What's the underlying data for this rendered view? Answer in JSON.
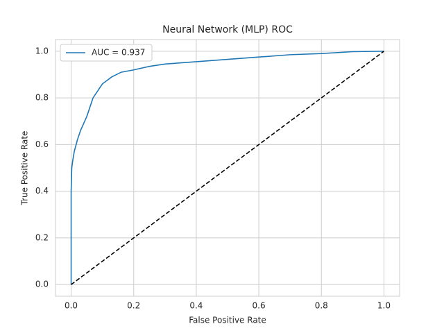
{
  "chart_data": {
    "type": "line",
    "title": "Neural Network (MLP) ROC",
    "x_label": "False Positive Rate",
    "y_label": "True Positive Rate",
    "series": [
      {
        "name": "AUC = 0.937",
        "color": "#1f77b4",
        "dash": false,
        "x": [
          0,
          0,
          0.002,
          0.005,
          0.01,
          0.02,
          0.03,
          0.05,
          0.07,
          0.1,
          0.13,
          0.16,
          0.2,
          0.25,
          0.3,
          0.4,
          0.5,
          0.6,
          0.7,
          0.8,
          0.9,
          1.0
        ],
        "values": [
          0,
          0.4,
          0.5,
          0.53,
          0.57,
          0.62,
          0.66,
          0.72,
          0.8,
          0.86,
          0.89,
          0.91,
          0.92,
          0.935,
          0.945,
          0.955,
          0.965,
          0.975,
          0.985,
          0.99,
          0.998,
          1.0
        ]
      },
      {
        "color": "#000000",
        "dash": true,
        "x": [
          0,
          1
        ],
        "values": [
          0,
          1
        ]
      }
    ],
    "xlim": [
      -0.05,
      1.05
    ],
    "ylim": [
      -0.05,
      1.05
    ],
    "xticks": [
      {
        "value": 0,
        "label": "0.0"
      },
      0.2,
      0.4,
      0.6,
      0.8,
      {
        "value": 1,
        "label": "1.0"
      }
    ],
    "yticks": [
      {
        "value": 0,
        "label": "0.0"
      },
      0.2,
      0.4,
      0.6,
      0.8,
      {
        "value": 1,
        "label": "1.0"
      }
    ],
    "grid": true,
    "legend": "upper-left"
  }
}
